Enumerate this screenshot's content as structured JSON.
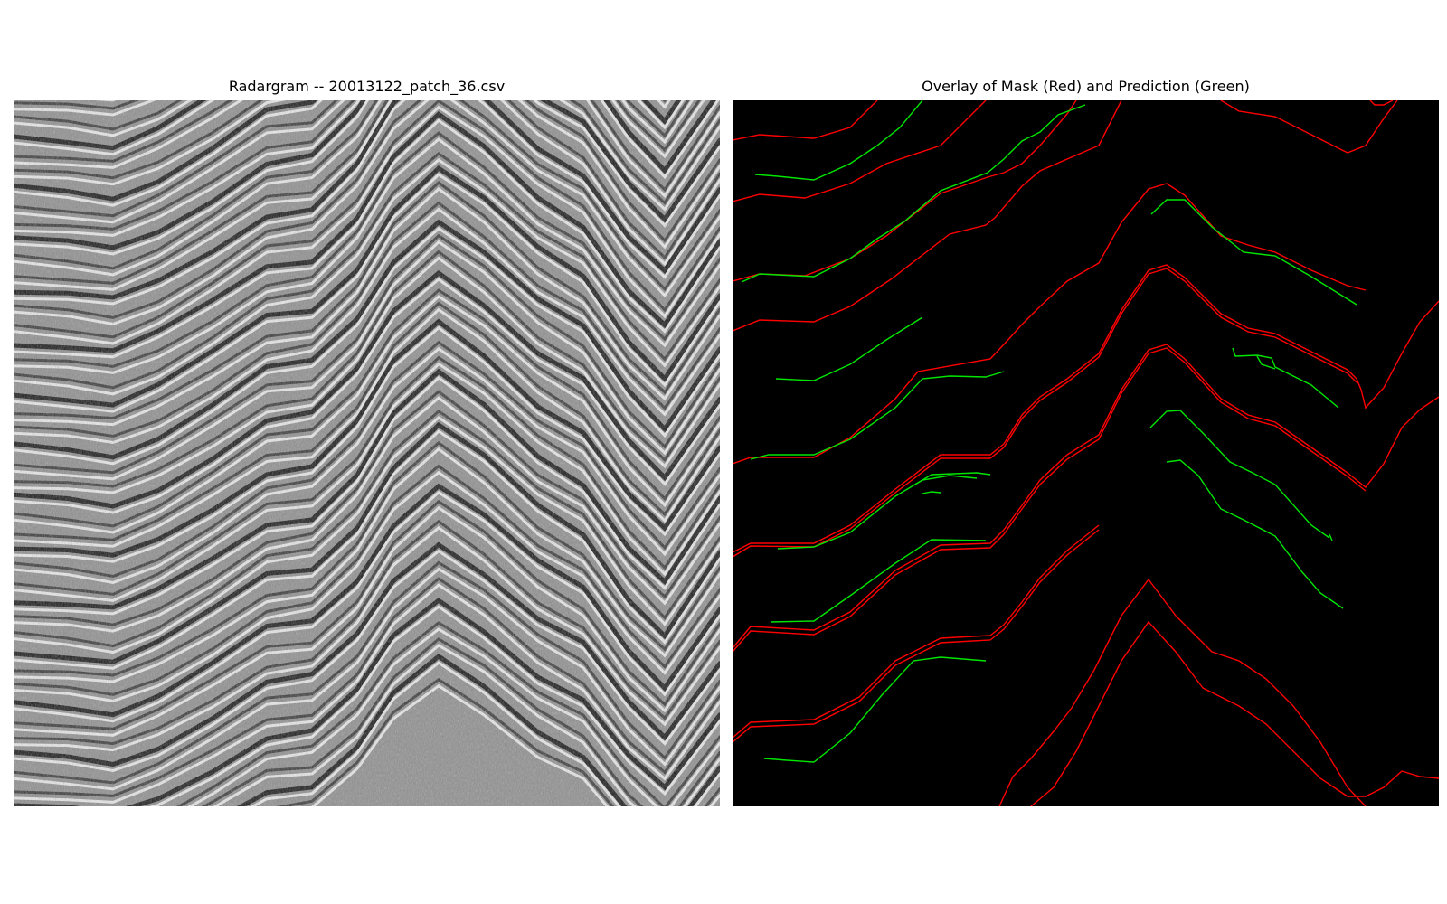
{
  "left_panel": {
    "title": "Radargram -- 20013122_patch_36.csv",
    "image": "grayscale radargram with folded layered reflectors"
  },
  "right_panel": {
    "title": "Overlay of Mask (Red) and Prediction (Green)",
    "background_color": "#000000",
    "mask_color": "#ff0000",
    "prediction_color": "#00e600"
  }
}
